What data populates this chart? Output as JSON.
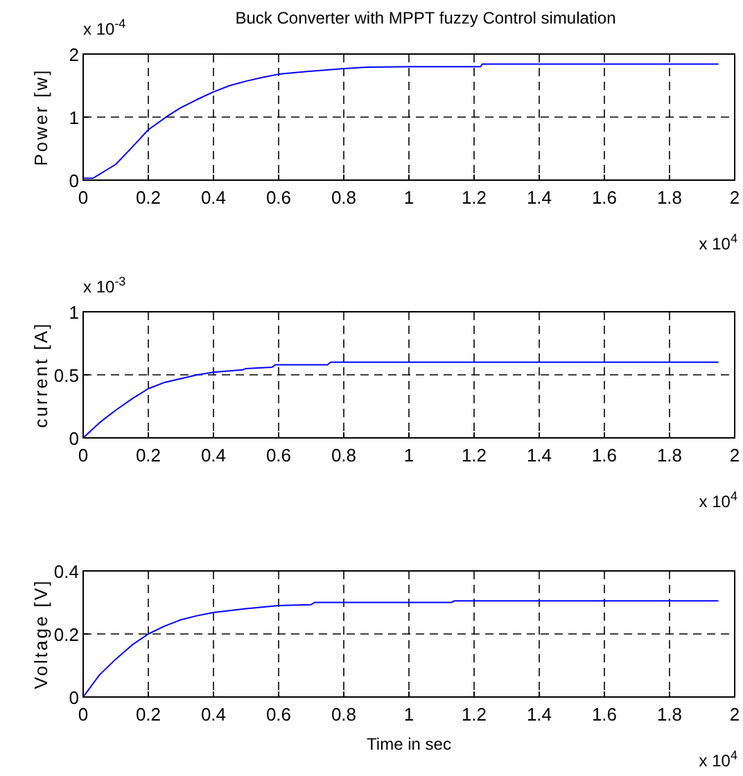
{
  "chart_data": [
    {
      "type": "line",
      "title": "Buck Converter with MPPT fuzzy Control simulation",
      "ylabel": "Power [w]",
      "annotations": [
        "x 10$^{-4}$",
        "x 10$^{4}$"
      ],
      "xlim": [
        0,
        2
      ],
      "xticks": [
        0,
        0.2,
        0.4,
        0.6,
        0.8,
        1,
        1.2,
        1.4,
        1.6,
        1.8,
        2
      ],
      "ylim": [
        0,
        2
      ],
      "yticks": [
        0,
        1,
        2
      ],
      "grid": true,
      "series": [
        {
          "color": "#0000ff",
          "x": [
            0,
            0.03,
            0.1,
            0.15,
            0.2,
            0.26,
            0.3,
            0.35,
            0.4,
            0.45,
            0.5,
            0.55,
            0.6,
            0.68,
            0.8,
            0.87,
            1.0,
            1.22,
            1.225,
            1.95
          ],
          "values": [
            0.03,
            0.03,
            0.25,
            0.52,
            0.8,
            1.02,
            1.15,
            1.28,
            1.4,
            1.5,
            1.57,
            1.63,
            1.68,
            1.72,
            1.77,
            1.79,
            1.8,
            1.8,
            1.84,
            1.84
          ]
        }
      ]
    },
    {
      "type": "line",
      "ylabel": "current [A]",
      "annotations": [
        "x 10$^{-3}$",
        "x 10$^{4}$"
      ],
      "xlim": [
        0,
        2
      ],
      "xticks": [
        0,
        0.2,
        0.4,
        0.6,
        0.8,
        1,
        1.2,
        1.4,
        1.6,
        1.8,
        2
      ],
      "ylim": [
        0,
        1
      ],
      "yticks": [
        0,
        0.5,
        1
      ],
      "grid": true,
      "series": [
        {
          "color": "#0000ff",
          "x": [
            0,
            0.05,
            0.1,
            0.15,
            0.2,
            0.25,
            0.3,
            0.35,
            0.4,
            0.49,
            0.5,
            0.58,
            0.59,
            0.75,
            0.76,
            1.95
          ],
          "values": [
            0,
            0.12,
            0.22,
            0.31,
            0.39,
            0.44,
            0.47,
            0.5,
            0.52,
            0.54,
            0.55,
            0.56,
            0.58,
            0.58,
            0.6,
            0.6
          ]
        }
      ]
    },
    {
      "type": "line",
      "xlabel": "Time in sec",
      "ylabel": "Voltage [V]",
      "annotations": [
        "x 10$^{4}$"
      ],
      "xlim": [
        0,
        2
      ],
      "xticks": [
        0,
        0.2,
        0.4,
        0.6,
        0.8,
        1,
        1.2,
        1.4,
        1.6,
        1.8,
        2
      ],
      "ylim": [
        0,
        0.4
      ],
      "yticks": [
        0,
        0.2,
        0.4
      ],
      "grid": true,
      "series": [
        {
          "color": "#0000ff",
          "x": [
            0,
            0.05,
            0.1,
            0.15,
            0.2,
            0.25,
            0.3,
            0.35,
            0.4,
            0.5,
            0.6,
            0.7,
            0.71,
            1.13,
            1.14,
            1.95
          ],
          "values": [
            0,
            0.07,
            0.12,
            0.165,
            0.2,
            0.225,
            0.245,
            0.258,
            0.268,
            0.28,
            0.29,
            0.293,
            0.3,
            0.3,
            0.305,
            0.305
          ]
        }
      ]
    }
  ]
}
